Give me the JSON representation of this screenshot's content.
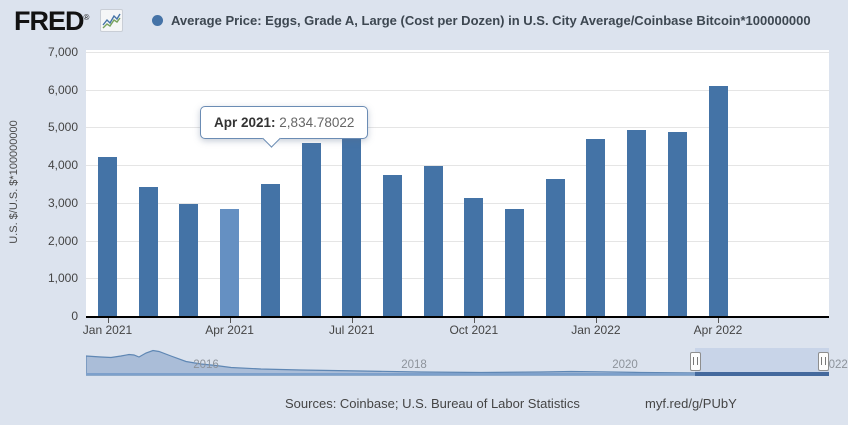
{
  "header": {
    "logo_text": "FRED",
    "registered_mark": "®",
    "series_title": "Average Price: Eggs, Grade A, Large (Cost per Dozen) in U.S. City Average/Coinbase Bitcoin*100000000"
  },
  "colors": {
    "page_background": "#dce3ee",
    "bar": "#4473a6",
    "bar_highlight": "#6590c2",
    "legend_dot": "#4573a7",
    "gridline": "#e5e5e5",
    "crosshair": "#cccccc"
  },
  "chart_data": {
    "type": "bar",
    "title": "Average Price: Eggs, Grade A, Large (Cost per Dozen) in U.S. City Average/Coinbase Bitcoin*100000000",
    "xlabel": "",
    "ylabel": "U.S. $/U.S. $*100000000",
    "ylim": [
      0,
      7000
    ],
    "grid": true,
    "legend_position": "top",
    "yticks": [
      0,
      1000,
      2000,
      3000,
      4000,
      5000,
      6000,
      7000
    ],
    "ytick_labels": [
      "0",
      "1,000",
      "2,000",
      "3,000",
      "4,000",
      "5,000",
      "6,000",
      "7,000"
    ],
    "categories": [
      "Jan 2021",
      "Feb 2021",
      "Mar 2021",
      "Apr 2021",
      "May 2021",
      "Jun 2021",
      "Jul 2021",
      "Aug 2021",
      "Sep 2021",
      "Oct 2021",
      "Nov 2021",
      "Dec 2021",
      "Jan 2022",
      "Feb 2022",
      "Mar 2022",
      "Apr 2022"
    ],
    "values": [
      4220,
      3430,
      2960,
      2834.78022,
      3490,
      4600,
      4780,
      3750,
      3990,
      3140,
      2850,
      3620,
      4700,
      4940,
      4890,
      6090
    ],
    "highlighted_index": 3,
    "x_axis_labels": [
      "Jan 2021",
      "Apr 2021",
      "Jul 2021",
      "Oct 2021",
      "Jan 2022",
      "Apr 2022"
    ],
    "brush_sparkline": {
      "description": "full-history preview area, 2015-2022, high early peak then decay",
      "points": [
        [
          0,
          8
        ],
        [
          15,
          9
        ],
        [
          25,
          9.5
        ],
        [
          35,
          8
        ],
        [
          43,
          6.5
        ],
        [
          48,
          7
        ],
        [
          53,
          9
        ],
        [
          60,
          5
        ],
        [
          67,
          2.5
        ],
        [
          73,
          3.5
        ],
        [
          85,
          8
        ],
        [
          100,
          13.5
        ],
        [
          115,
          16
        ],
        [
          130,
          17.5
        ],
        [
          145,
          19.5
        ],
        [
          175,
          21
        ],
        [
          215,
          22
        ],
        [
          275,
          23
        ],
        [
          335,
          24
        ],
        [
          395,
          24.5
        ],
        [
          455,
          24
        ],
        [
          485,
          23.5
        ],
        [
          515,
          23.8
        ],
        [
          555,
          24.5
        ],
        [
          615,
          25
        ],
        [
          743,
          25
        ]
      ],
      "year_labels": [
        "2016",
        "2018",
        "2020",
        "2022"
      ]
    }
  },
  "tooltip": {
    "label": "Apr 2021:",
    "value": "2,834.78022"
  },
  "footer": {
    "sources_text": "Sources: Coinbase; U.S. Bureau of Labor Statistics",
    "permalink_text": "myf.red/g/PUbY"
  }
}
